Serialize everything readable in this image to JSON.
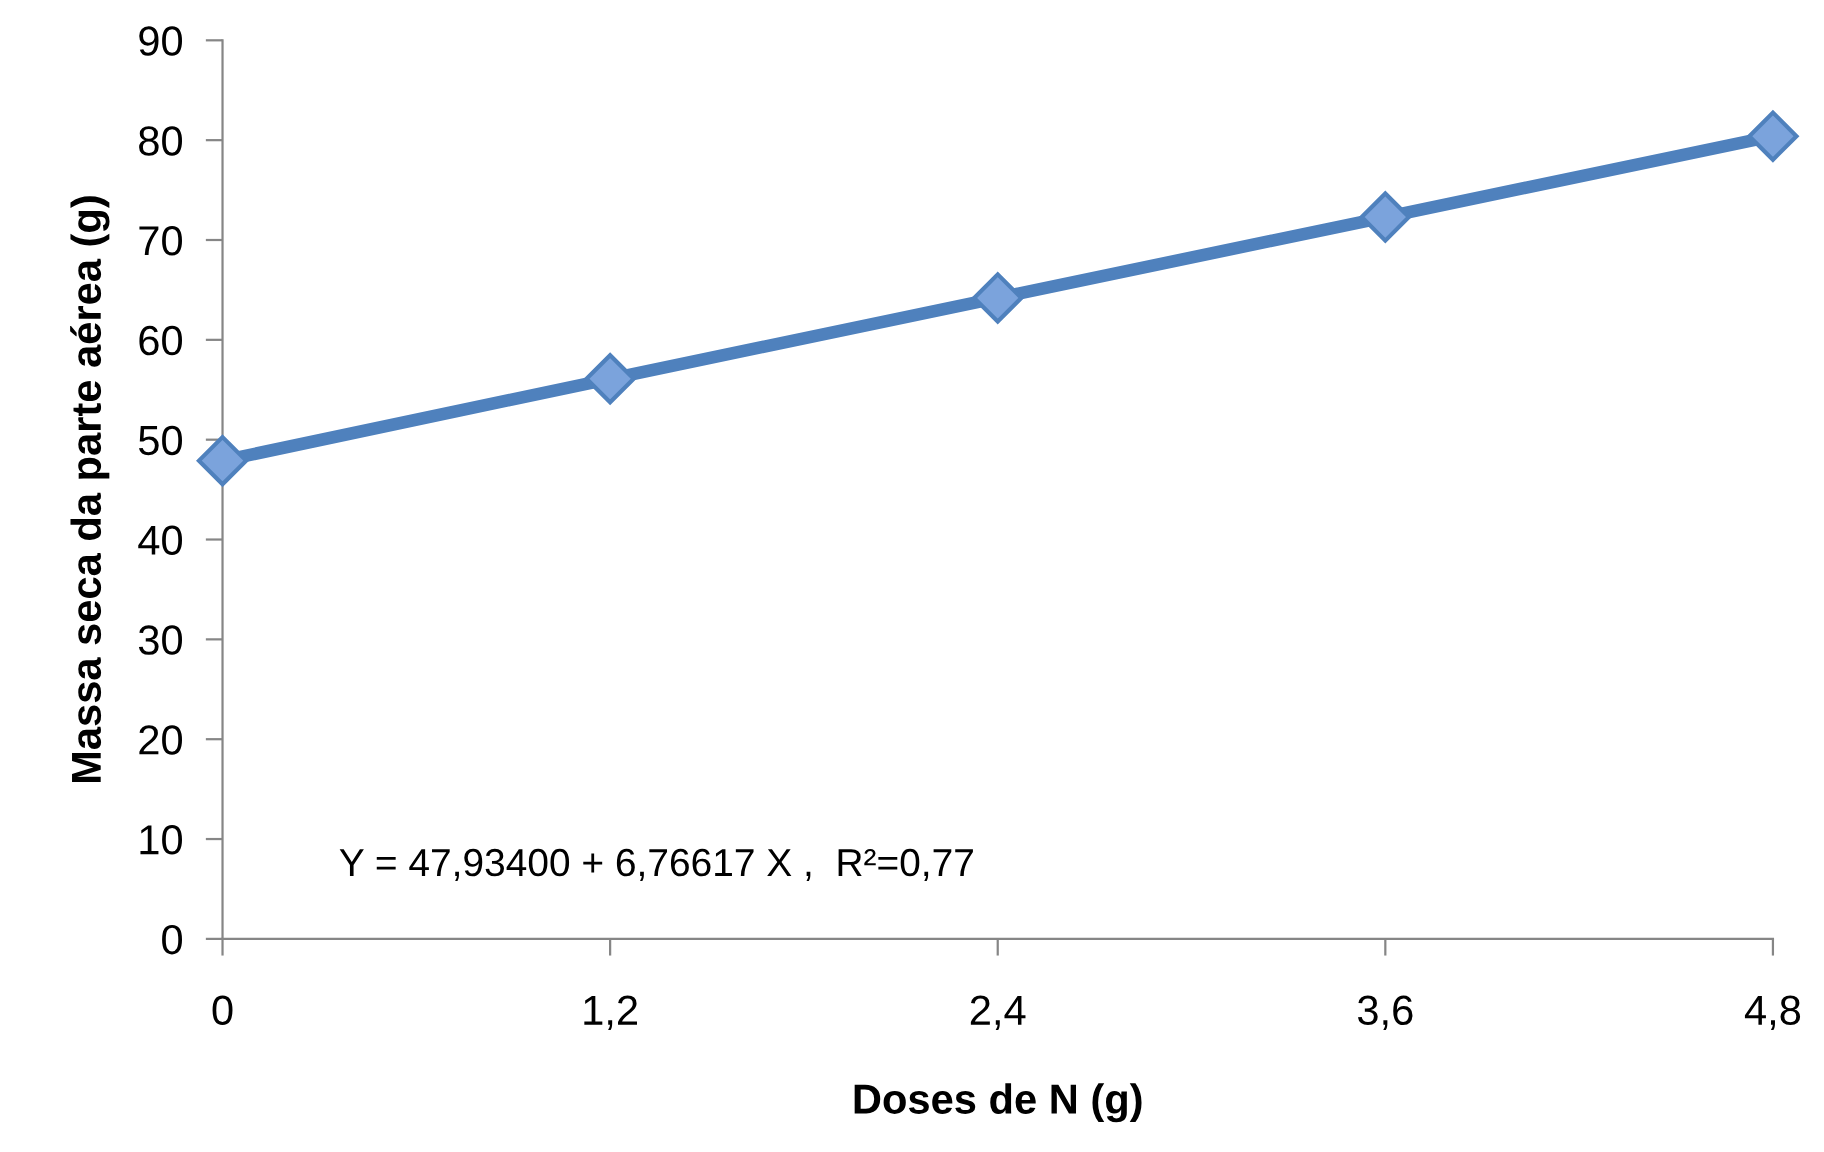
{
  "chart_data": {
    "type": "line",
    "xlabel": "Doses de N (g)",
    "ylabel": "Massa seca da parte aérea (g)",
    "categories": [
      "0",
      "1,2",
      "2,4",
      "3,6",
      "4,8"
    ],
    "series": [
      {
        "color": "#4f81bd",
        "values": [
          47.9,
          56.1,
          64.2,
          72.3,
          80.4
        ]
      }
    ],
    "ylim": [
      0,
      90
    ],
    "yticks": [
      0,
      10,
      20,
      30,
      40,
      50,
      60,
      70,
      80,
      90
    ],
    "marker": "diamond",
    "line_style": "solid",
    "grid": false,
    "legend": false,
    "annotations": [
      "Y = 47,93400 + 6,76617 X ,  R²=0,77"
    ]
  }
}
